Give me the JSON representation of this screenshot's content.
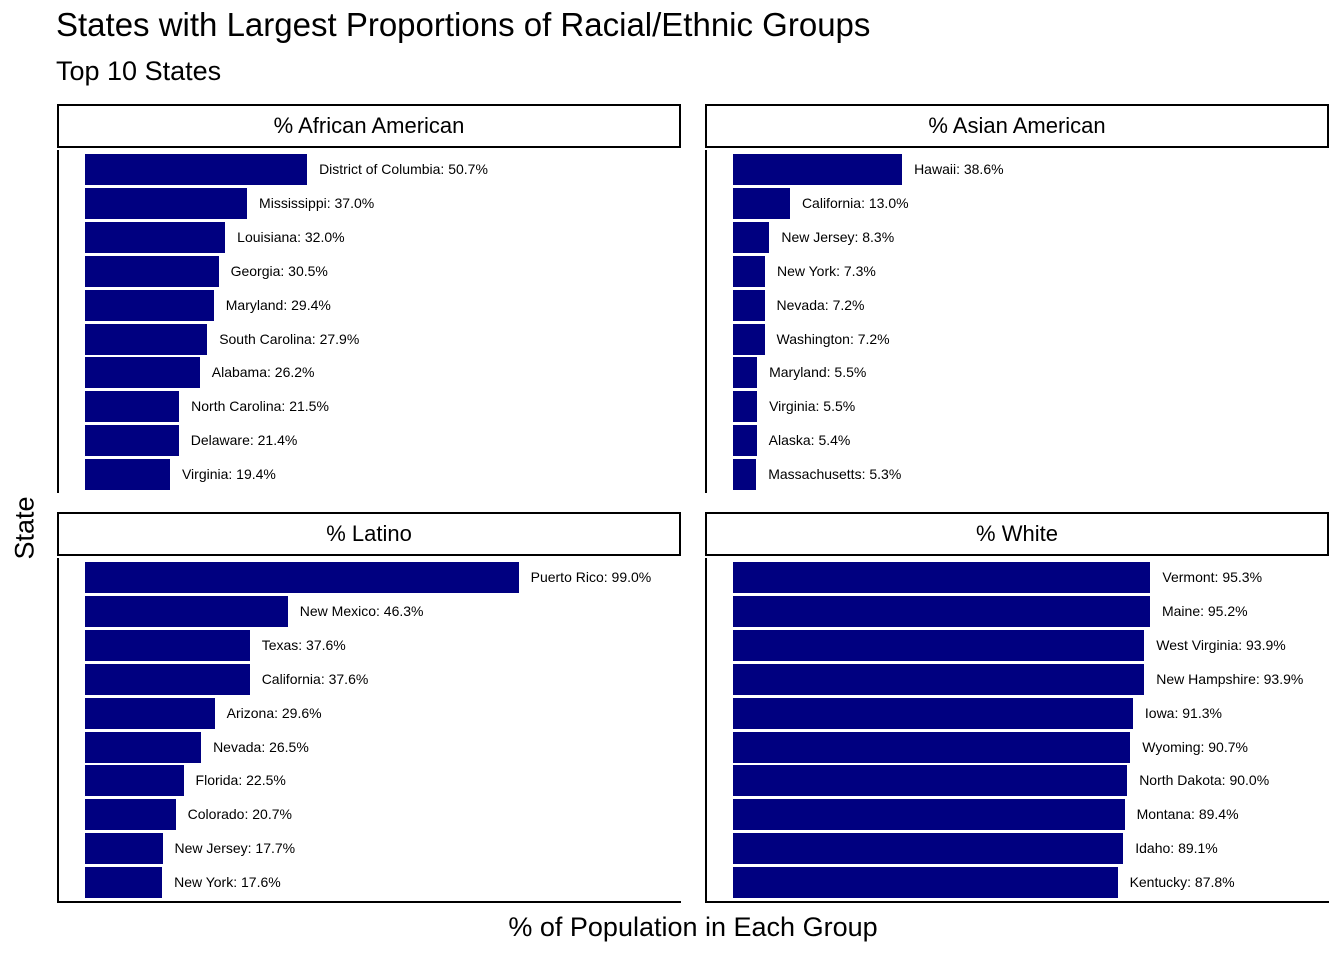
{
  "title": "States with Largest Proportions of Racial/Ethnic Groups",
  "subtitle": "Top 10 States",
  "xlabel": "% of Population in Each Group",
  "ylabel": "State",
  "colors": {
    "bar": "#000080"
  },
  "chart_data": [
    {
      "type": "bar",
      "orientation": "horizontal",
      "title": "% African American",
      "categories": [
        "District of Columbia",
        "Mississippi",
        "Louisiana",
        "Georgia",
        "Maryland",
        "South Carolina",
        "Alabama",
        "North Carolina",
        "Delaware",
        "Virginia"
      ],
      "values": [
        50.7,
        37.0,
        32.0,
        30.5,
        29.4,
        27.9,
        26.2,
        21.5,
        21.4,
        19.4
      ],
      "labels": [
        "District of Columbia: 50.7%",
        "Mississippi: 37.0%",
        "Louisiana: 32.0%",
        "Georgia: 30.5%",
        "Maryland: 29.4%",
        "South Carolina: 27.9%",
        "Alabama: 26.2%",
        "North Carolina: 21.5%",
        "Delaware: 21.4%",
        "Virginia: 19.4%"
      ]
    },
    {
      "type": "bar",
      "orientation": "horizontal",
      "title": "% Asian American",
      "categories": [
        "Hawaii",
        "California",
        "New Jersey",
        "New York",
        "Nevada",
        "Washington",
        "Maryland",
        "Virginia",
        "Alaska",
        "Massachusetts"
      ],
      "values": [
        38.6,
        13.0,
        8.3,
        7.3,
        7.2,
        7.2,
        5.5,
        5.5,
        5.4,
        5.3
      ],
      "labels": [
        "Hawaii: 38.6%",
        "California: 13.0%",
        "New Jersey: 8.3%",
        "New York: 7.3%",
        "Nevada: 7.2%",
        "Washington: 7.2%",
        "Maryland: 5.5%",
        "Virginia: 5.5%",
        "Alaska: 5.4%",
        "Massachusetts: 5.3%"
      ]
    },
    {
      "type": "bar",
      "orientation": "horizontal",
      "title": "% Latino",
      "categories": [
        "Puerto Rico",
        "New Mexico",
        "Texas",
        "California",
        "Arizona",
        "Nevada",
        "Florida",
        "Colorado",
        "New Jersey",
        "New York"
      ],
      "values": [
        99.0,
        46.3,
        37.6,
        37.6,
        29.6,
        26.5,
        22.5,
        20.7,
        17.7,
        17.6
      ],
      "labels": [
        "Puerto Rico: 99.0%",
        "New Mexico: 46.3%",
        "Texas: 37.6%",
        "California: 37.6%",
        "Arizona: 29.6%",
        "Nevada: 26.5%",
        "Florida: 22.5%",
        "Colorado: 20.7%",
        "New Jersey: 17.7%",
        "New York: 17.6%"
      ]
    },
    {
      "type": "bar",
      "orientation": "horizontal",
      "title": "% White",
      "categories": [
        "Vermont",
        "Maine",
        "West Virginia",
        "New Hampshire",
        "Iowa",
        "Wyoming",
        "North Dakota",
        "Montana",
        "Idaho",
        "Kentucky"
      ],
      "values": [
        95.3,
        95.2,
        93.9,
        93.9,
        91.3,
        90.7,
        90.0,
        89.4,
        89.1,
        87.8
      ],
      "labels": [
        "Vermont: 95.3%",
        "Maine: 95.2%",
        "West Virginia: 93.9%",
        "New Hampshire: 93.9%",
        "Iowa: 91.3%",
        "Wyoming: 90.7%",
        "North Dakota: 90.0%",
        "Montana: 89.4%",
        "Idaho: 89.1%",
        "Kentucky: 87.8%"
      ]
    }
  ]
}
